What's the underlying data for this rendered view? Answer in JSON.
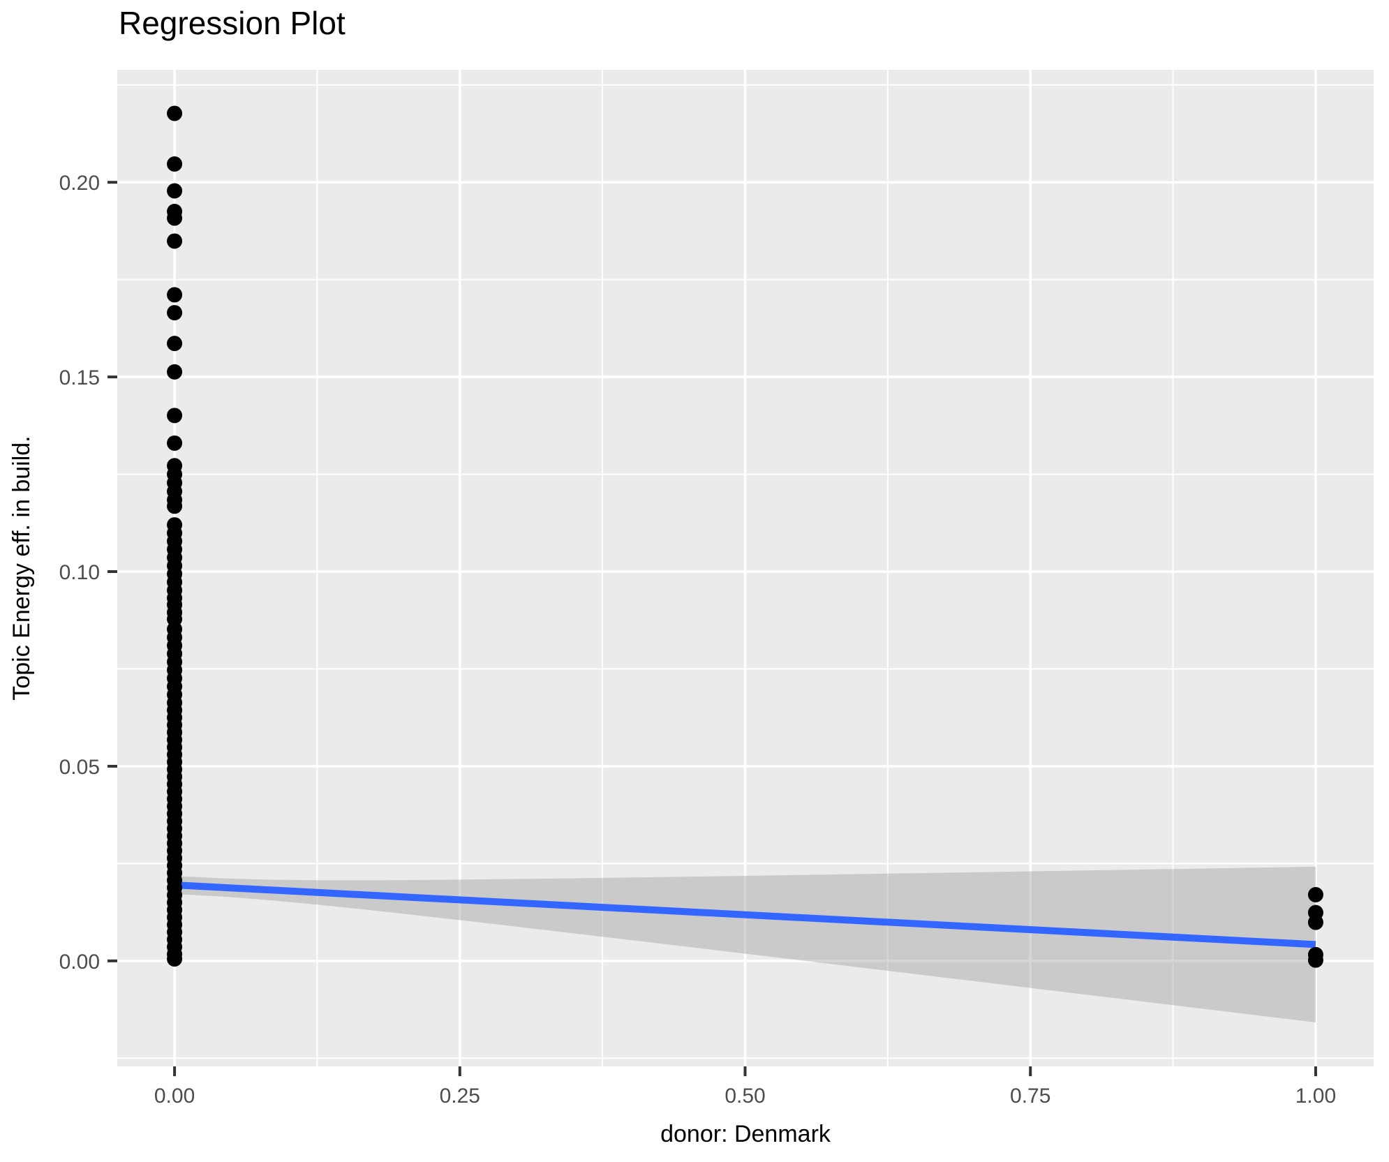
{
  "chart_data": {
    "type": "scatter",
    "title": "Regression Plot",
    "xlabel": "donor: Denmark",
    "ylabel": "Topic Energy eff. in build.",
    "xlim": [
      -0.0502,
      1.0508
    ],
    "ylim": [
      -0.0271,
      0.2289
    ],
    "grid": "major+minor, white on grey panel",
    "legend_position": "none",
    "x_major_ticks": {
      "values": [
        0,
        0.25,
        0.5,
        0.75,
        1
      ],
      "labels": [
        "0.00",
        "0.25",
        "0.50",
        "0.75",
        "1.00"
      ]
    },
    "y_major_ticks": {
      "values": [
        0,
        0.05,
        0.1,
        0.15,
        0.2
      ],
      "labels": [
        "0.00",
        "0.05",
        "0.10",
        "0.15",
        "0.20"
      ]
    },
    "x_minor_ticks": [
      0.125,
      0.375,
      0.625,
      0.875
    ],
    "y_minor_ticks": [
      -0.025,
      0.025,
      0.075,
      0.125,
      0.175,
      0.225
    ],
    "point_clusters": [
      {
        "x": 0,
        "ys": [
          0.2177,
          0.2047,
          0.1978,
          0.1925,
          0.1908,
          0.1849,
          0.1711,
          0.1665,
          0.1586,
          0.1513,
          0.1401,
          0.133,
          0.1272,
          0.125,
          0.1228,
          0.1206,
          0.1184,
          0.1168,
          0.112,
          0.1099,
          0.1078,
          0.1057,
          0.1036,
          0.1015,
          0.0994,
          0.0973,
          0.0952,
          0.0932,
          0.0915,
          0.0895,
          0.0878,
          0.0852,
          0.0831,
          0.081,
          0.0789,
          0.0768,
          0.0747,
          0.0726,
          0.0705,
          0.0684,
          0.0663,
          0.0644,
          0.0625,
          0.0606,
          0.0587,
          0.0568,
          0.0549,
          0.053,
          0.0511,
          0.0492,
          0.0473,
          0.0454,
          0.0435,
          0.0416,
          0.0397,
          0.0378,
          0.0359,
          0.034,
          0.0321,
          0.0302,
          0.0283,
          0.0264,
          0.0245,
          0.0226,
          0.0207,
          0.0188,
          0.0169,
          0.015,
          0.0131,
          0.0112,
          0.0093,
          0.0074,
          0.0055,
          0.0036,
          0.0017,
          0.0005
        ]
      },
      {
        "x": 1,
        "ys": [
          0.017,
          0.0124,
          0.0099,
          0.0016,
          0.0002
        ]
      }
    ],
    "regression_line": {
      "x": [
        0,
        1
      ],
      "y": [
        0.0195,
        0.0042
      ],
      "color": "#3366FF"
    },
    "confidence_band": {
      "x_range": [
        0,
        1
      ],
      "x_mean": 0.02,
      "half_width_at_mean": 0.0023,
      "half_width_at_x1": 0.02,
      "band_at_x0": [
        0.0172,
        0.0218
      ],
      "band_at_x1": [
        -0.0158,
        0.0242
      ],
      "color": "rgba(153,153,153,0.40)"
    },
    "colors": {
      "panel_background": "#EBEBEB",
      "gridline": "#FFFFFF",
      "point": "#000000",
      "tick_mark": "#333333",
      "tick_label": "#4D4D4D",
      "titles": "#000000"
    }
  }
}
